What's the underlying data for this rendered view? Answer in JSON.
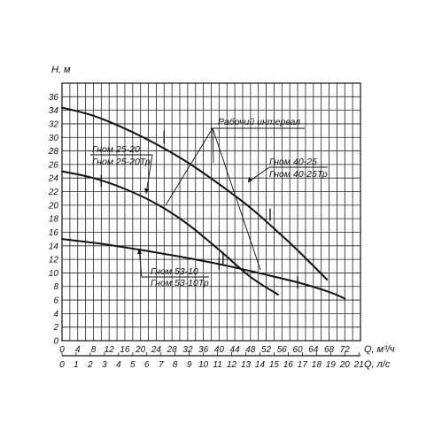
{
  "chart_data": {
    "type": "line",
    "ylabel": "Н, м",
    "xlabel": "Q, м³/ч",
    "x2label": "Q, л/с",
    "xlim": [
      0,
      76
    ],
    "ylim": [
      0,
      38
    ],
    "x_ticks": [
      0,
      4,
      8,
      12,
      16,
      20,
      24,
      28,
      32,
      36,
      40,
      44,
      48,
      52,
      56,
      60,
      64,
      68,
      72
    ],
    "y_ticks": [
      0,
      2,
      4,
      6,
      8,
      10,
      12,
      14,
      16,
      18,
      20,
      22,
      24,
      26,
      28,
      30,
      32,
      34,
      36
    ],
    "x2_ticks": [
      0,
      1,
      2,
      3,
      4,
      5,
      6,
      7,
      8,
      9,
      10,
      11,
      12,
      13,
      14,
      15,
      16,
      17,
      18,
      19,
      20,
      21
    ],
    "grid": true,
    "series": [
      {
        "name": "Гном 40-25",
        "name2": "Гном 40-25Тр",
        "x": [
          0,
          8,
          16,
          24,
          32,
          40,
          48,
          56,
          62,
          67.5
        ],
        "y": [
          34.4,
          33.2,
          31.3,
          29.0,
          26.3,
          23.1,
          19.6,
          15.5,
          12.2,
          9.0
        ],
        "work_marks": [
          [
            26,
            30
          ],
          [
            53,
            18.6
          ]
        ]
      },
      {
        "name": "Гном 25-20",
        "name2": "Гном 25-20Тр",
        "x": [
          0,
          8,
          16,
          24,
          32,
          40,
          48,
          55
        ],
        "y": [
          25.0,
          24.0,
          22.4,
          20.2,
          17.2,
          13.4,
          9.4,
          6.8
        ],
        "work_marks": [
          [
            10,
            23.6
          ],
          [
            41,
            12.2
          ]
        ]
      },
      {
        "name": "Гном 53-10",
        "name2": "Гном 53-10Тр",
        "x": [
          0,
          10,
          20,
          30,
          40,
          50,
          60,
          68,
          72
        ],
        "y": [
          15.0,
          14.3,
          13.4,
          12.4,
          11.3,
          10.0,
          8.6,
          7.2,
          6.2
        ],
        "work_marks": [
          [
            40,
            11.4
          ],
          [
            60,
            8.6
          ]
        ]
      }
    ],
    "annotations": [
      {
        "text": "Рабочий интервал"
      }
    ]
  }
}
